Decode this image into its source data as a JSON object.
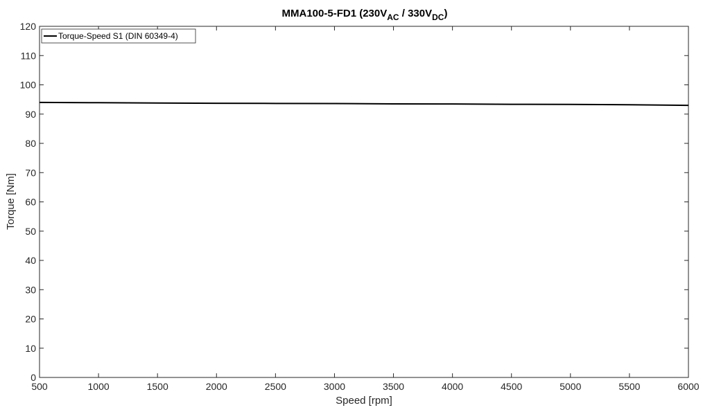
{
  "chart_data": {
    "type": "line",
    "title": {
      "main": "MMA100-5-FD1 (230V",
      "sub1": "AC",
      "mid": " / 330V",
      "sub2": "DC",
      "end": ")"
    },
    "xlabel": "Speed [rpm]",
    "ylabel": "Torque [Nm]",
    "xlim": [
      500,
      6000
    ],
    "ylim": [
      0,
      120
    ],
    "xticks": [
      500,
      1000,
      1500,
      2000,
      2500,
      3000,
      3500,
      4000,
      4500,
      5000,
      5500,
      6000
    ],
    "yticks": [
      0,
      10,
      20,
      30,
      40,
      50,
      60,
      70,
      80,
      90,
      100,
      110,
      120
    ],
    "grid": false,
    "legend_position": "top-left",
    "series": [
      {
        "name": "Torque-Speed S1 (DIN 60349-4)",
        "color": "#000000",
        "x": [
          500,
          1000,
          1500,
          2000,
          2500,
          3000,
          3500,
          4000,
          4500,
          5000,
          5500,
          6000
        ],
        "y": [
          94.0,
          93.9,
          93.8,
          93.7,
          93.65,
          93.6,
          93.5,
          93.45,
          93.35,
          93.3,
          93.2,
          93.0
        ]
      }
    ]
  }
}
